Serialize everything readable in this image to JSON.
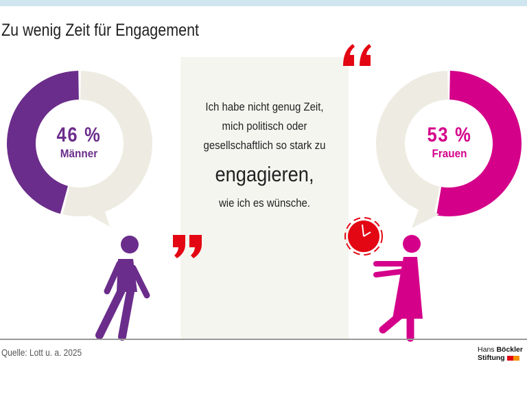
{
  "title": "Zu wenig Zeit für Engagement",
  "quote": {
    "line1": "Ich habe nicht genug Zeit,",
    "line2": "mich politisch oder",
    "line3": "gesellschaftlich so stark zu",
    "line4": "engagieren,",
    "line5": "wie ich es wünsche."
  },
  "men": {
    "value_label": "46 %",
    "label": "Männer",
    "percent": 46,
    "color": "#6b2d8b"
  },
  "women": {
    "value_label": "53 %",
    "label": "Frauen",
    "percent": 53,
    "color": "#d4008a"
  },
  "colors": {
    "remainder": "#eeece2",
    "quote_marks": "#e30613",
    "clock": "#e30613"
  },
  "source": "Quelle: Lott u. a. 2025",
  "logo": {
    "line1_a": "Hans",
    "line1_b": "Böckler",
    "line2": "Stiftung"
  }
}
